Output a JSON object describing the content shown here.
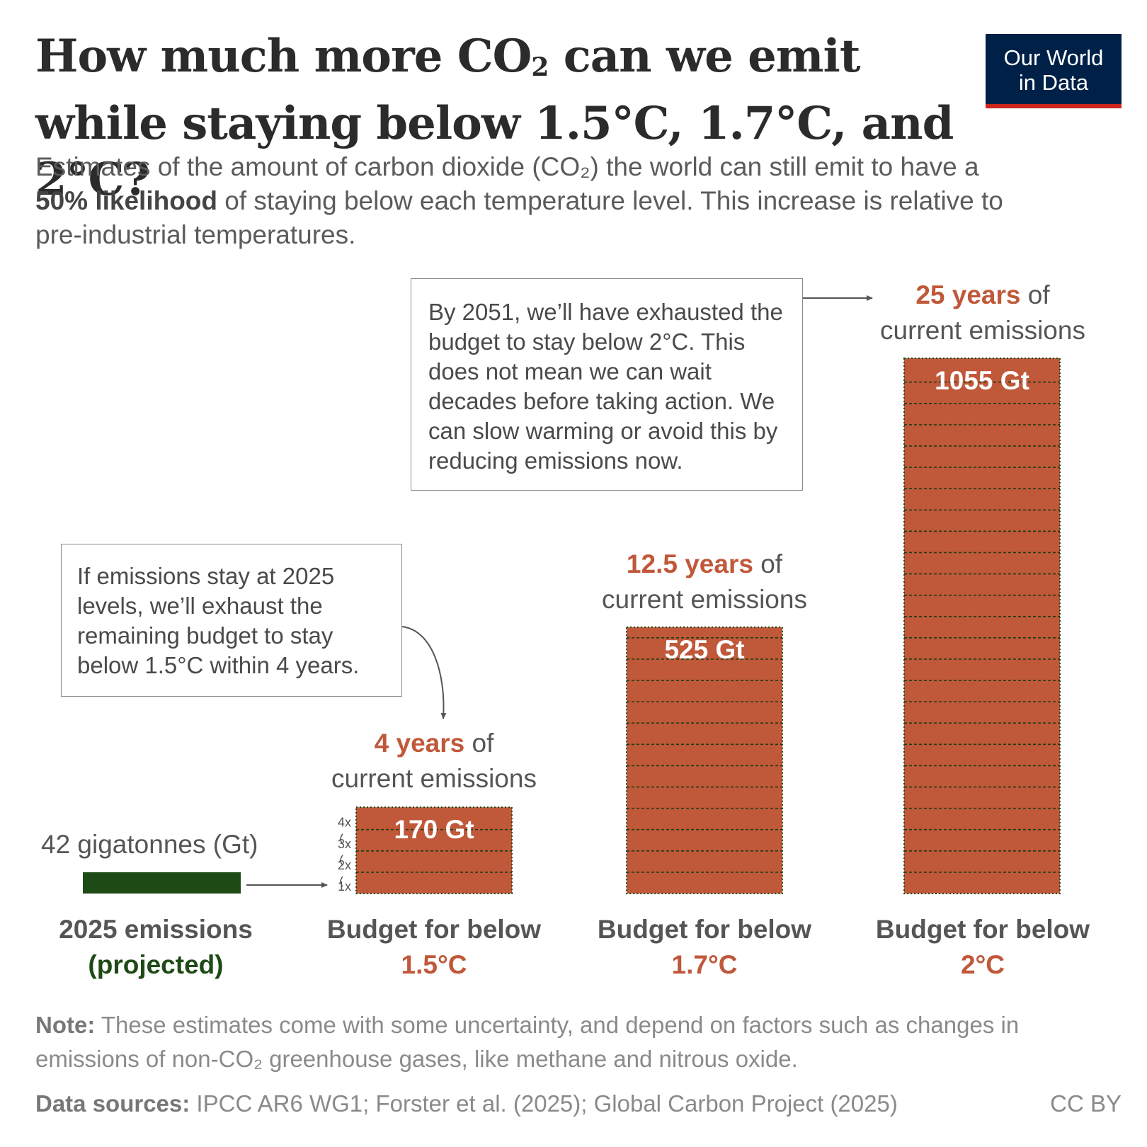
{
  "title": {
    "part1": "How much more CO",
    "sub": "2",
    "part2": " can we emit while staying below 1.5°C, 1.7°C, and 2°C?"
  },
  "subtitle": {
    "part1": "Estimates of the amount of carbon dioxide (CO₂) the world can still emit to have a ",
    "bold": "50% likelihood",
    "part2": " of staying below each temperature level. This increase is relative to pre-industrial temperatures."
  },
  "logo": {
    "line1": "Our World",
    "line2": "in Data"
  },
  "annotations": {
    "two_deg": "By 2051, we’ll have exhausted the budget to stay below 2°C. This does not mean we can wait decades before taking action. We can slow warming or avoid this by reducing emissions now.",
    "one_five": "If emissions stay at 2025 levels, we’ll exhaust the remaining budget to stay below 1.5°C within 4 years."
  },
  "chart_data": {
    "type": "bar",
    "unit": "Gt",
    "current_emissions": {
      "value": 42,
      "label": "42 gigatonnes (Gt)",
      "caption_line1": "2025 emissions",
      "caption_line2": "(projected)",
      "color": "#1e4a16"
    },
    "budget_color": "#c0583a",
    "bars": [
      {
        "value": 170,
        "value_label": "170 Gt",
        "years_hl": "4 years",
        "years_rest": " of",
        "years_line2": "current emissions",
        "caption_line1": "Budget for below",
        "caption_line2": "1.5°C"
      },
      {
        "value": 525,
        "value_label": "525 Gt",
        "years_hl": "12.5 years",
        "years_rest": " of",
        "years_line2": "current emissions",
        "caption_line1": "Budget for below",
        "caption_line2": "1.7°C"
      },
      {
        "value": 1055,
        "value_label": "1055 Gt",
        "years_hl": "25 years",
        "years_rest": " of",
        "years_line2": "current emissions",
        "caption_line1": "Budget for below",
        "caption_line2": "2°C"
      }
    ],
    "multiplier_labels": [
      "1x",
      "2x",
      "3x",
      "4x"
    ]
  },
  "footer": {
    "note_label": "Note:",
    "note_text": " These estimates come with some uncertainty, and depend on factors such as changes in emissions of non-CO₂ greenhouse gases, like methane and nitrous oxide.",
    "sources_label": "Data sources:",
    "sources_text": " IPCC AR6 WG1; Forster et al. (2025); Global Carbon Project (2025)",
    "license": "CC BY"
  }
}
